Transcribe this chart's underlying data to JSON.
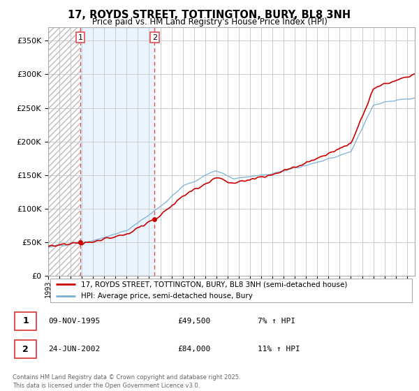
{
  "title": "17, ROYDS STREET, TOTTINGTON, BURY, BL8 3NH",
  "subtitle": "Price paid vs. HM Land Registry's House Price Index (HPI)",
  "legend_line1": "17, ROYDS STREET, TOTTINGTON, BURY, BL8 3NH (semi-detached house)",
  "legend_line2": "HPI: Average price, semi-detached house, Bury",
  "transaction1_date": "09-NOV-1995",
  "transaction1_price": "£49,500",
  "transaction1_hpi": "7% ↑ HPI",
  "transaction2_date": "24-JUN-2002",
  "transaction2_price": "£84,000",
  "transaction2_hpi": "11% ↑ HPI",
  "footer": "Contains HM Land Registry data © Crown copyright and database right 2025.\nThis data is licensed under the Open Government Licence v3.0.",
  "price_color": "#cc0000",
  "hpi_color": "#7ab0d4",
  "vline_color": "#e05050",
  "yticks": [
    0,
    50000,
    100000,
    150000,
    200000,
    250000,
    300000,
    350000
  ],
  "transaction1_x": 1995.86,
  "transaction1_y": 49500,
  "transaction2_x": 2002.48,
  "transaction2_y": 84000,
  "xlim_start": 1993.0,
  "xlim_end": 2025.7,
  "ylim_top": 370000,
  "hatch_end": 1995.86,
  "lightblue_end": 2002.48
}
